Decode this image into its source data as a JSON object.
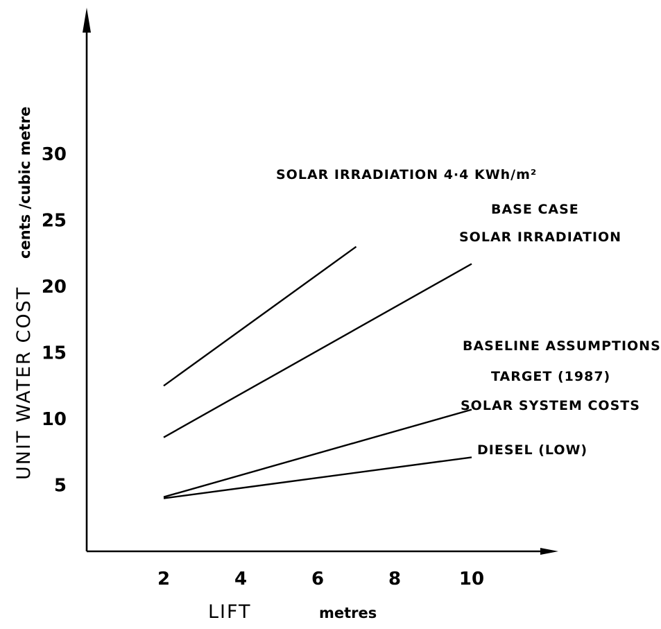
{
  "chart_data": {
    "type": "line",
    "title": "",
    "xlabel": "LIFT",
    "xunit": "metres",
    "ylabel": "UNIT WATER COST",
    "yunit": "cents /cubic metre",
    "xlim": [
      0,
      12
    ],
    "ylim": [
      0,
      33
    ],
    "xticks": [
      2,
      4,
      6,
      8,
      10
    ],
    "yticks": [
      5,
      10,
      15,
      20,
      25,
      30
    ],
    "grid": false,
    "series": [
      {
        "points": [
          [
            2,
            12.5
          ],
          [
            7,
            23
          ]
        ]
      },
      {
        "points": [
          [
            2,
            8.6
          ],
          [
            10,
            21.7
          ]
        ]
      },
      {
        "points": [
          [
            2,
            4.1
          ],
          [
            10,
            10.7
          ]
        ]
      },
      {
        "points": [
          [
            2,
            4.0
          ],
          [
            10,
            7.1
          ]
        ]
      }
    ],
    "annotations": [
      {
        "lines": [
          "SOLAR IRRADIATION 4·4 KWh/m²"
        ]
      },
      {
        "lines": [
          "BASE CASE",
          "SOLAR IRRADIATION"
        ]
      },
      {
        "lines": [
          "BASELINE ASSUMPTIONS"
        ]
      },
      {
        "lines": [
          "TARGET (1987)",
          "SOLAR SYSTEM COSTS"
        ]
      },
      {
        "lines": [
          "DIESEL (LOW)"
        ]
      }
    ]
  }
}
